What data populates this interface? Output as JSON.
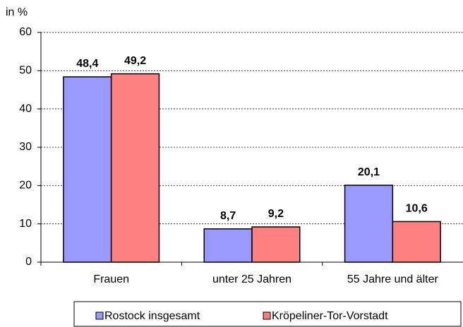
{
  "chart_data": {
    "type": "bar",
    "y_label": "in %",
    "categories": [
      "Frauen",
      "unter 25 Jahren",
      "55 Jahre und älter"
    ],
    "series": [
      {
        "name": "Rostock insgesamt",
        "color": "#9999ff",
        "values": [
          48.4,
          8.7,
          20.1
        ],
        "value_labels": [
          "48,4",
          "8,7",
          "20,1"
        ]
      },
      {
        "name": "Kröpeliner-Tor-Vorstadt",
        "color": "#ff8080",
        "values": [
          49.2,
          9.2,
          10.6
        ],
        "value_labels": [
          "49,2",
          "9,2",
          "10,6"
        ]
      }
    ],
    "ylim": [
      0,
      60
    ],
    "yticks": [
      0,
      10,
      20,
      30,
      40,
      50,
      60
    ],
    "grid": true
  }
}
